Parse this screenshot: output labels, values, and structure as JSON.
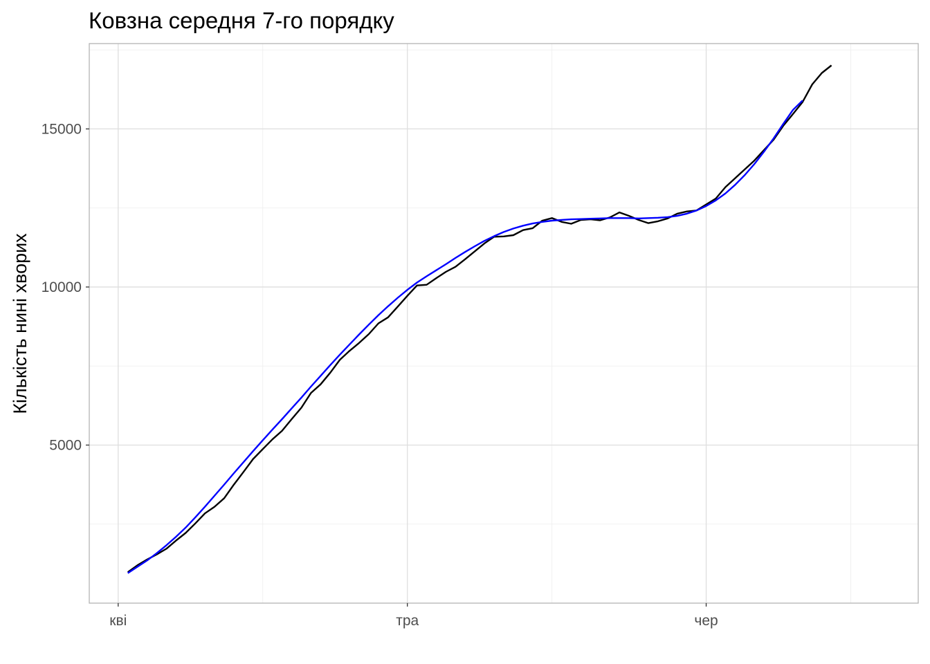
{
  "chart_data": {
    "type": "line",
    "title": "Ковзна середня 7-го порядку",
    "xlabel": "",
    "ylabel": "Кількість нині хворих",
    "x_axis": {
      "type": "date",
      "range": [
        "2020-03-29",
        "2020-06-23"
      ],
      "ticks": [
        {
          "date": "2020-04-01",
          "label": "кві"
        },
        {
          "date": "2020-05-01",
          "label": "тра"
        },
        {
          "date": "2020-06-01",
          "label": "чер"
        }
      ],
      "minor_ticks": [
        "2020-04-16",
        "2020-05-16",
        "2020-06-16"
      ]
    },
    "y_axis": {
      "range": [
        0,
        17700
      ],
      "ticks": [
        5000,
        10000,
        15000
      ],
      "minor_ticks": [
        2500,
        7500,
        12500,
        17500
      ]
    },
    "grid": true,
    "series": [
      {
        "color": "#000000",
        "x_start": "2020-04-02",
        "y": [
          980,
          1200,
          1380,
          1540,
          1720,
          1980,
          2220,
          2520,
          2840,
          3050,
          3320,
          3750,
          4150,
          4560,
          4870,
          5180,
          5450,
          5820,
          6180,
          6650,
          6920,
          7290,
          7700,
          7980,
          8230,
          8510,
          8850,
          9040,
          9380,
          9720,
          10050,
          10070,
          10280,
          10480,
          10640,
          10880,
          11130,
          11380,
          11590,
          11600,
          11640,
          11800,
          11860,
          12100,
          12180,
          12060,
          12000,
          12120,
          12140,
          12110,
          12200,
          12360,
          12250,
          12120,
          12020,
          12080,
          12170,
          12320,
          12390,
          12420,
          12610,
          12800,
          13160,
          13440,
          13720,
          14000,
          14330,
          14660,
          15100,
          15470,
          15850,
          16410,
          16770,
          17010
        ]
      },
      {
        "color": "#0000ff",
        "x_start": "2020-04-02",
        "y": [
          950,
          1150,
          1350,
          1580,
          1830,
          2100,
          2390,
          2710,
          3050,
          3400,
          3750,
          4110,
          4460,
          4810,
          5150,
          5490,
          5820,
          6160,
          6500,
          6850,
          7190,
          7530,
          7860,
          8180,
          8500,
          8810,
          9110,
          9390,
          9660,
          9910,
          10140,
          10340,
          10530,
          10720,
          10920,
          11110,
          11290,
          11460,
          11610,
          11740,
          11850,
          11940,
          12010,
          12060,
          12100,
          12120,
          12140,
          12150,
          12160,
          12170,
          12180,
          12180,
          12180,
          12170,
          12180,
          12190,
          12210,
          12250,
          12320,
          12420,
          12560,
          12740,
          12960,
          13230,
          13540,
          13890,
          14280,
          14700,
          15160,
          15600,
          15900
        ]
      }
    ]
  }
}
